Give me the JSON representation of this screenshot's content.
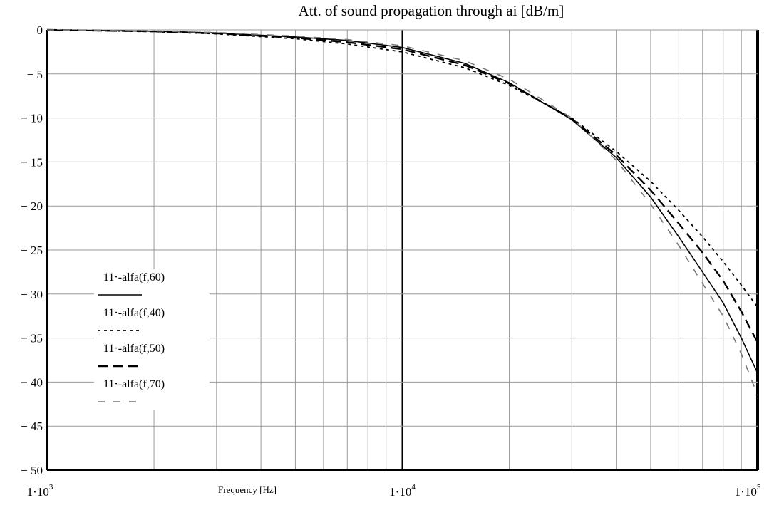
{
  "chart_data": {
    "type": "line",
    "title": "Att. of sound propagation through ai [dB/m]",
    "xlabel": "Frequency [Hz]",
    "ylabel": "",
    "x_scale": "log",
    "xlim": [
      1000,
      100000
    ],
    "ylim": [
      -50,
      0
    ],
    "grid": true,
    "x_tick_labels": [
      {
        "value": 1000,
        "base": "1·10",
        "exp": "3"
      },
      {
        "value": 10000,
        "base": "1·10",
        "exp": "4"
      },
      {
        "value": 100000,
        "base": "1·10",
        "exp": "5"
      }
    ],
    "y_ticks": [
      0,
      -5,
      -10,
      -15,
      -20,
      -25,
      -30,
      -35,
      -40,
      -45,
      -50
    ],
    "legend_position": "lower-left",
    "x": [
      1000,
      2000,
      3000,
      5000,
      7000,
      10000,
      15000,
      20000,
      30000,
      40000,
      50000,
      60000,
      70000,
      80000,
      90000,
      100000
    ],
    "series": [
      {
        "name": "11·-alfa(f,60)",
        "dash": "solid",
        "color": "#000000",
        "values": [
          0,
          -0.15,
          -0.35,
          -0.8,
          -1.2,
          -2.0,
          -3.8,
          -6.0,
          -10.2,
          -14.5,
          -19.0,
          -23.5,
          -27.5,
          -31.0,
          -35.0,
          -39.0
        ]
      },
      {
        "name": "11·-alfa(f,40)",
        "dash": "dot",
        "color": "#000000",
        "values": [
          0,
          -0.2,
          -0.45,
          -1.0,
          -1.6,
          -2.5,
          -4.3,
          -6.3,
          -10.0,
          -13.8,
          -17.2,
          -20.5,
          -23.5,
          -26.3,
          -29.0,
          -31.5
        ]
      },
      {
        "name": "11·-alfa(f,50)",
        "dash": "dash",
        "color": "#000000",
        "values": [
          0,
          -0.17,
          -0.4,
          -0.9,
          -1.4,
          -2.2,
          -4.0,
          -6.1,
          -10.1,
          -14.2,
          -18.2,
          -22.0,
          -25.3,
          -28.5,
          -32.0,
          -35.5
        ]
      },
      {
        "name": "11·-alfa(f,70)",
        "dash": "longdash",
        "color": "#777777",
        "values": [
          0,
          -0.12,
          -0.3,
          -0.7,
          -1.1,
          -1.8,
          -3.5,
          -5.6,
          -10.0,
          -14.8,
          -19.8,
          -24.5,
          -28.8,
          -32.5,
          -36.8,
          -41.5
        ]
      }
    ]
  }
}
